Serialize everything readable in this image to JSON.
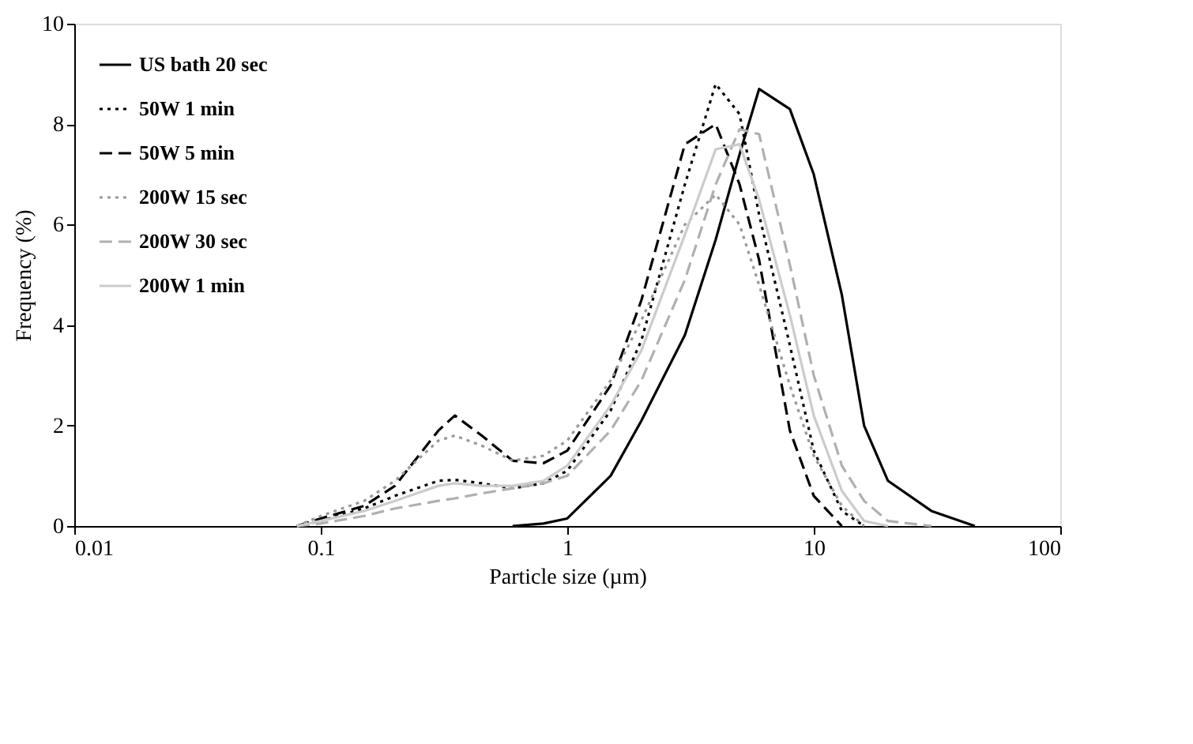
{
  "chart_data": {
    "type": "line",
    "xlabel": "Particle size (µm)",
    "ylabel": "Frequency (%)",
    "x": [
      0.08,
      0.1,
      0.15,
      0.2,
      0.3,
      0.35,
      0.45,
      0.6,
      0.8,
      1,
      1.5,
      2,
      3,
      4,
      5,
      6,
      8,
      10,
      13,
      16,
      20,
      30,
      45
    ],
    "series": [
      {
        "name": "US bath 20 sec",
        "color": "#000000",
        "line_style": "solid",
        "values": [
          null,
          null,
          null,
          null,
          null,
          null,
          null,
          0,
          0.05,
          0.15,
          1.0,
          2.1,
          3.8,
          5.7,
          7.4,
          8.7,
          8.3,
          7.0,
          4.6,
          2.0,
          0.9,
          0.3,
          0
        ]
      },
      {
        "name": "50W 1 min",
        "color": "#000000",
        "line_style": "dotted",
        "values": [
          0,
          0.1,
          0.35,
          0.6,
          0.9,
          0.92,
          0.85,
          0.75,
          0.85,
          1.1,
          2.3,
          3.7,
          6.8,
          8.8,
          8.2,
          6.2,
          3.6,
          1.5,
          0.3,
          0,
          null,
          null,
          null
        ]
      },
      {
        "name": "50W 5 min",
        "color": "#000000",
        "line_style": "dashed",
        "values": [
          0,
          0.15,
          0.4,
          0.8,
          1.9,
          2.2,
          1.8,
          1.3,
          1.25,
          1.5,
          2.8,
          4.5,
          7.6,
          8.0,
          6.8,
          5.3,
          1.9,
          0.6,
          0,
          null,
          null,
          null,
          null
        ]
      },
      {
        "name": "200W 15 sec",
        "color": "#999999",
        "line_style": "dotted",
        "values": [
          0,
          0.2,
          0.5,
          0.9,
          1.7,
          1.8,
          1.6,
          1.3,
          1.4,
          1.7,
          2.9,
          4.1,
          6.0,
          6.6,
          6.0,
          4.8,
          2.8,
          1.4,
          0.4,
          0,
          null,
          null,
          null
        ]
      },
      {
        "name": "200W 30 sec",
        "color": "#b0b0b0",
        "line_style": "dashed",
        "values": [
          0,
          0.05,
          0.2,
          0.35,
          0.5,
          0.55,
          0.65,
          0.75,
          0.85,
          1.0,
          1.9,
          2.9,
          4.9,
          6.8,
          7.9,
          7.8,
          5.2,
          3.0,
          1.2,
          0.5,
          0.1,
          0,
          null
        ]
      },
      {
        "name": "200W 1 min",
        "color": "#cccccc",
        "line_style": "solid",
        "values": [
          0,
          0.1,
          0.3,
          0.5,
          0.8,
          0.85,
          0.8,
          0.8,
          0.9,
          1.2,
          2.4,
          3.5,
          5.8,
          7.5,
          7.6,
          6.5,
          4.2,
          2.2,
          0.7,
          0.1,
          0,
          null,
          null
        ]
      }
    ],
    "xlim": [
      0.01,
      100
    ],
    "xticks": [
      0.01,
      0.1,
      1,
      10,
      100
    ],
    "log": "x",
    "ylim": [
      0,
      10
    ],
    "yticks": [
      0,
      2,
      4,
      6,
      8,
      10
    ],
    "grid": false,
    "legend": "top left"
  }
}
